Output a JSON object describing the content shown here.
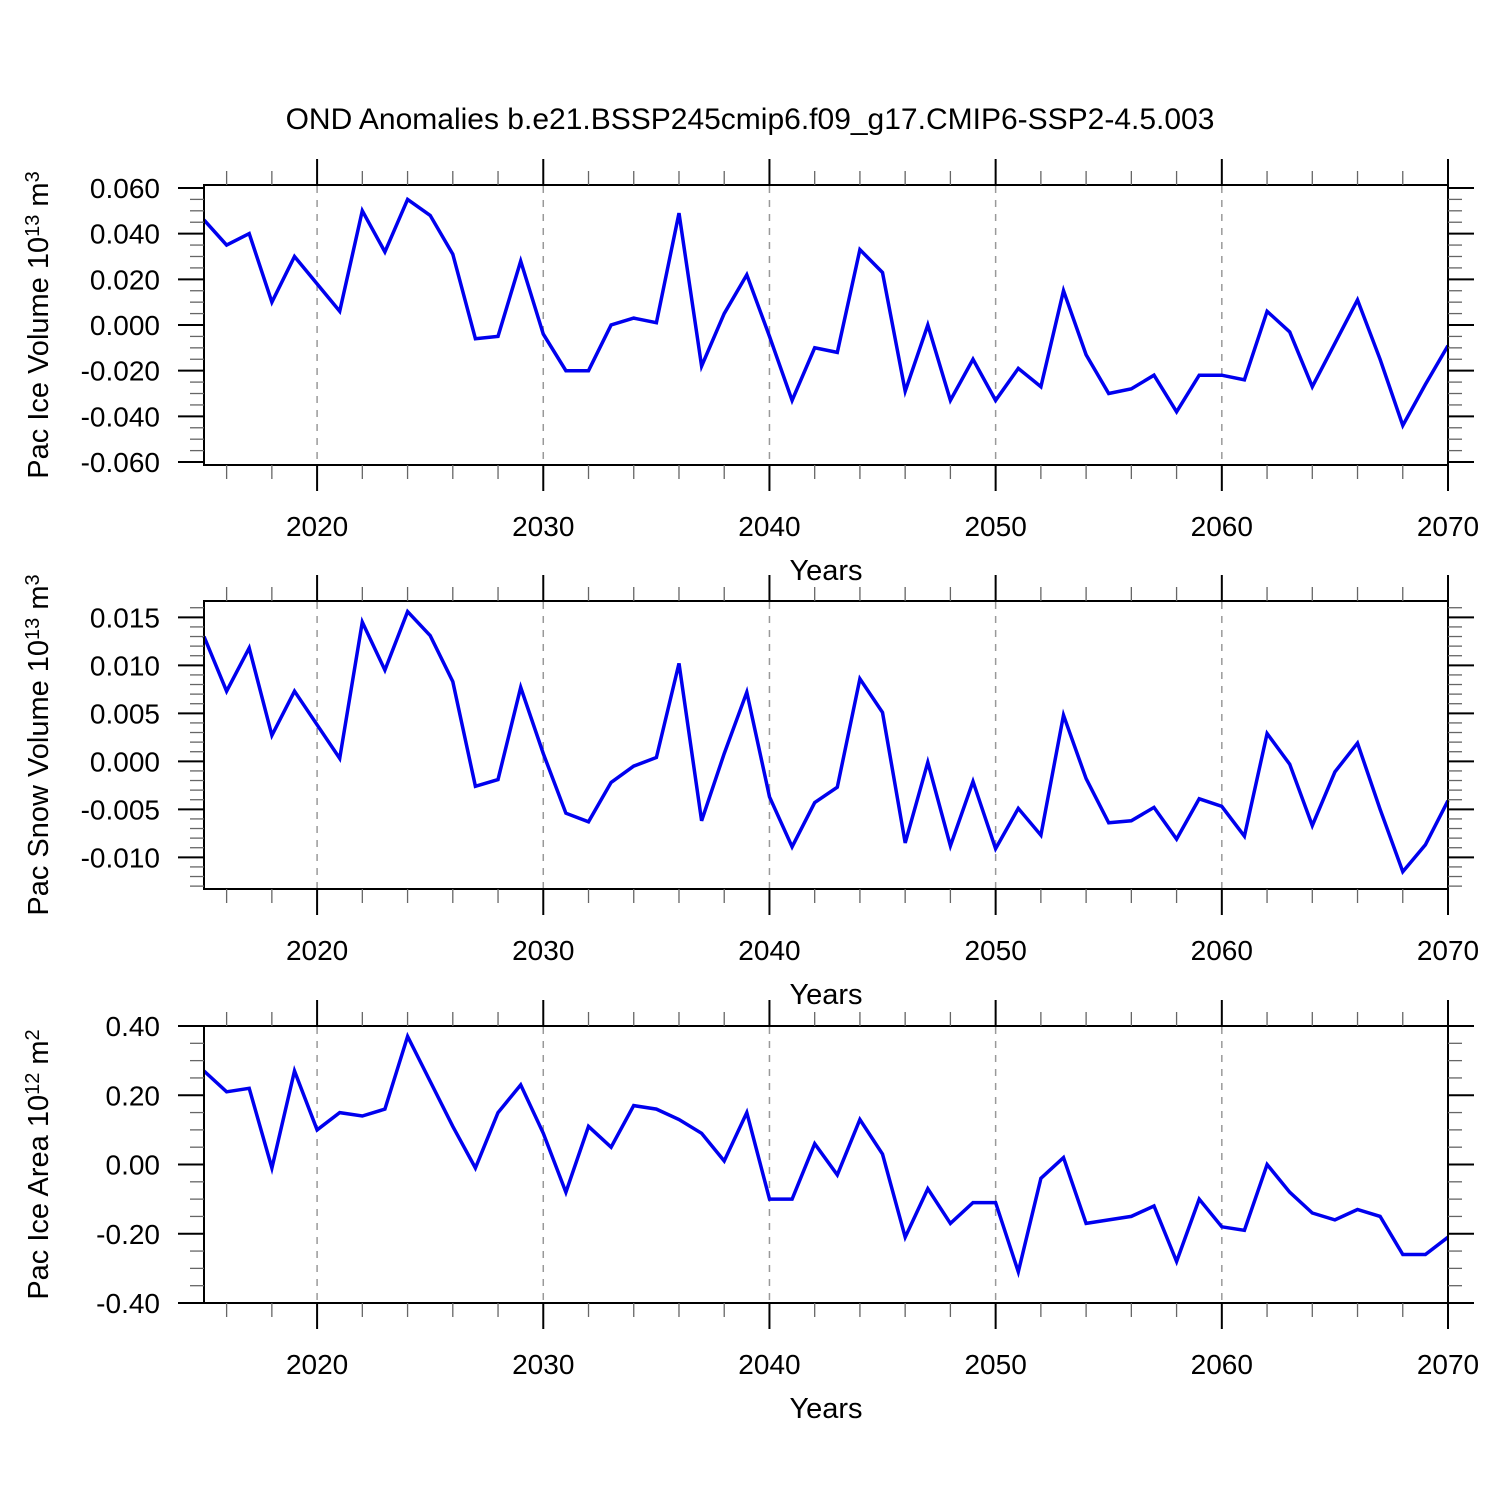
{
  "figure": {
    "title": "OND Anomalies b.e21.BSSP245cmip6.f09_g17.CMIP6-SSP2-4.5.003",
    "background": "#ffffff"
  },
  "style": {
    "line_color": "#0000ee",
    "grid_color": "#999999",
    "axis_color": "#000000",
    "minor_tick_color": "#666666"
  },
  "x_axis": {
    "label": "Years",
    "xlim": [
      2015,
      2070
    ],
    "tick_years": [
      2020,
      2030,
      2040,
      2050,
      2060,
      2070
    ],
    "tick_labels": [
      "2020",
      "2030",
      "2040",
      "2050",
      "2060",
      "2070"
    ],
    "minor_step": 2,
    "gridlines_at_major_ticks": true
  },
  "chart_data": [
    {
      "type": "line",
      "series_name": "Pac Ice Volume",
      "ylabel_text": "Pac Ice Volume 10^13 m^3",
      "ylabel_parts": [
        [
          "Pac Ice Volume 10",
          0
        ],
        [
          "13",
          1
        ],
        [
          " m",
          0
        ],
        [
          "3",
          1
        ]
      ],
      "xlabel": "Years",
      "ylim": [
        -0.0613,
        0.0613
      ],
      "ytick_values": [
        0.06,
        0.04,
        0.02,
        0.0,
        -0.02,
        -0.04,
        -0.06
      ],
      "ytick_labels": [
        "0.060",
        "0.040",
        "0.020",
        "0.000",
        "-0.020",
        "-0.040",
        "-0.060"
      ],
      "y_minor_step": 0.005,
      "grid": false,
      "legend": "none",
      "x": [
        2015,
        2016,
        2017,
        2018,
        2019,
        2020,
        2021,
        2022,
        2023,
        2024,
        2025,
        2026,
        2027,
        2028,
        2029,
        2030,
        2031,
        2032,
        2033,
        2034,
        2035,
        2036,
        2037,
        2038,
        2039,
        2040,
        2041,
        2042,
        2043,
        2044,
        2045,
        2046,
        2047,
        2048,
        2049,
        2050,
        2051,
        2052,
        2053,
        2054,
        2055,
        2056,
        2057,
        2058,
        2059,
        2060,
        2061,
        2062,
        2063,
        2064,
        2065,
        2066,
        2067,
        2068,
        2069,
        2070
      ],
      "values": [
        0.046,
        0.035,
        0.04,
        0.01,
        0.03,
        0.018,
        0.006,
        0.05,
        0.032,
        0.055,
        0.048,
        0.031,
        -0.006,
        -0.005,
        0.028,
        -0.004,
        -0.02,
        -0.02,
        0.0,
        0.003,
        0.001,
        0.049,
        -0.018,
        0.005,
        0.022,
        -0.005,
        -0.033,
        -0.01,
        -0.012,
        0.033,
        0.023,
        -0.029,
        0.0,
        -0.033,
        -0.015,
        -0.033,
        -0.019,
        -0.027,
        0.015,
        -0.013,
        -0.03,
        -0.028,
        -0.022,
        -0.038,
        -0.022,
        -0.022,
        -0.024,
        0.006,
        -0.003,
        -0.027,
        -0.008,
        0.011,
        -0.015,
        -0.044,
        -0.026,
        -0.009
      ]
    },
    {
      "type": "line",
      "series_name": "Pac Snow Volume",
      "ylabel_text": "Pac Snow Volume 10^13 m^3",
      "ylabel_parts": [
        [
          "Pac Snow Volume 10",
          0
        ],
        [
          "13",
          1
        ],
        [
          " m",
          0
        ],
        [
          "3",
          1
        ]
      ],
      "xlabel": "Years",
      "ylim": [
        -0.0133,
        0.0167
      ],
      "ytick_values": [
        0.015,
        0.01,
        0.005,
        0.0,
        -0.005,
        -0.01
      ],
      "ytick_labels": [
        "0.015",
        "0.010",
        "0.005",
        "0.000",
        "-0.005",
        "-0.010"
      ],
      "y_minor_step": 0.001,
      "grid": false,
      "legend": "none",
      "x": [
        2015,
        2016,
        2017,
        2018,
        2019,
        2020,
        2021,
        2022,
        2023,
        2024,
        2025,
        2026,
        2027,
        2028,
        2029,
        2030,
        2031,
        2032,
        2033,
        2034,
        2035,
        2036,
        2037,
        2038,
        2039,
        2040,
        2041,
        2042,
        2043,
        2044,
        2045,
        2046,
        2047,
        2048,
        2049,
        2050,
        2051,
        2052,
        2053,
        2054,
        2055,
        2056,
        2057,
        2058,
        2059,
        2060,
        2061,
        2062,
        2063,
        2064,
        2065,
        2066,
        2067,
        2068,
        2069,
        2070
      ],
      "values": [
        0.013,
        0.0073,
        0.0118,
        0.0027,
        0.0073,
        0.0038,
        0.0003,
        0.0145,
        0.0095,
        0.0156,
        0.0131,
        0.0083,
        -0.0026,
        -0.0019,
        0.0077,
        0.0008,
        -0.0054,
        -0.0063,
        -0.0022,
        -0.0005,
        0.0004,
        0.0102,
        -0.0062,
        0.0008,
        0.0072,
        -0.0037,
        -0.0089,
        -0.0043,
        -0.0027,
        0.0086,
        0.0051,
        -0.0085,
        -0.0001,
        -0.0088,
        -0.0021,
        -0.0091,
        -0.0049,
        -0.0077,
        0.0048,
        -0.0018,
        -0.0064,
        -0.0062,
        -0.0048,
        -0.0081,
        -0.0039,
        -0.0047,
        -0.0078,
        0.0029,
        -0.0003,
        -0.0067,
        -0.0011,
        0.0019,
        -0.005,
        -0.0115,
        -0.0087,
        -0.0041
      ]
    },
    {
      "type": "line",
      "series_name": "Pac Ice Area",
      "ylabel_text": "Pac Ice Area 10^12 m^2",
      "ylabel_parts": [
        [
          "Pac Ice Area 10",
          0
        ],
        [
          "12",
          1
        ],
        [
          " m",
          0
        ],
        [
          "2",
          1
        ]
      ],
      "xlabel": "Years",
      "ylim": [
        -0.4,
        0.4
      ],
      "ytick_values": [
        0.4,
        0.2,
        0.0,
        -0.2,
        -0.4
      ],
      "ytick_labels": [
        "0.40",
        "0.20",
        "0.00",
        "-0.20",
        "-0.40"
      ],
      "y_minor_step": 0.05,
      "grid": false,
      "legend": "none",
      "x": [
        2015,
        2016,
        2017,
        2018,
        2019,
        2020,
        2021,
        2022,
        2023,
        2024,
        2025,
        2026,
        2027,
        2028,
        2029,
        2030,
        2031,
        2032,
        2033,
        2034,
        2035,
        2036,
        2037,
        2038,
        2039,
        2040,
        2041,
        2042,
        2043,
        2044,
        2045,
        2046,
        2047,
        2048,
        2049,
        2050,
        2051,
        2052,
        2053,
        2054,
        2055,
        2056,
        2057,
        2058,
        2059,
        2060,
        2061,
        2062,
        2063,
        2064,
        2065,
        2066,
        2067,
        2068,
        2069,
        2070
      ],
      "values": [
        0.27,
        0.21,
        0.22,
        -0.01,
        0.27,
        0.1,
        0.15,
        0.14,
        0.16,
        0.37,
        0.24,
        0.11,
        -0.01,
        0.15,
        0.23,
        0.09,
        -0.08,
        0.11,
        0.05,
        0.17,
        0.16,
        0.13,
        0.09,
        0.01,
        0.15,
        -0.1,
        -0.1,
        0.06,
        -0.03,
        0.13,
        0.03,
        -0.21,
        -0.07,
        -0.17,
        -0.11,
        -0.11,
        -0.31,
        -0.04,
        0.02,
        -0.17,
        -0.16,
        -0.15,
        -0.12,
        -0.28,
        -0.1,
        -0.18,
        -0.19,
        0.0,
        -0.08,
        -0.14,
        -0.16,
        -0.13,
        -0.15,
        -0.26,
        -0.26,
        -0.21
      ]
    }
  ]
}
